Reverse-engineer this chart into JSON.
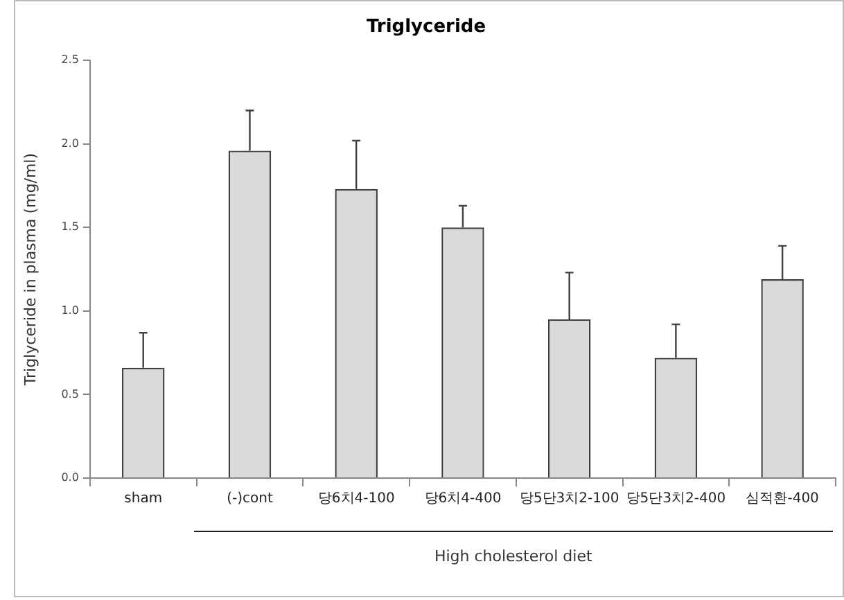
{
  "chart_data": {
    "type": "bar",
    "title": "Triglyceride",
    "ylabel": "Triglyceride in plasma (mg/ml)",
    "categories": [
      "sham",
      "(-)cont",
      "당6치4-100",
      "당6치4-400",
      "당5단3치2-100",
      "당5단3치2-400",
      "심적환-400"
    ],
    "values": [
      0.66,
      1.96,
      1.73,
      1.5,
      0.95,
      0.72,
      1.19
    ],
    "errors": [
      [
        0.66,
        0.87
      ],
      [
        1.96,
        2.2
      ],
      [
        1.73,
        2.02
      ],
      [
        1.5,
        1.63
      ],
      [
        0.95,
        1.23
      ],
      [
        0.72,
        0.92
      ],
      [
        1.19,
        1.39
      ]
    ],
    "color": "#d9d9d9",
    "ylim": [
      0,
      2.5
    ],
    "yticks": [
      {
        "value": 0,
        "label": "0.0"
      },
      {
        "value": 0.5,
        "label": "0.5"
      },
      {
        "value": 1,
        "label": "1.0"
      },
      {
        "value": 1.5,
        "label": "1.5"
      },
      {
        "value": 2,
        "label": "2.0"
      },
      {
        "value": 2.5,
        "label": "2.5"
      }
    ],
    "grid": false,
    "legend": false,
    "annotations": [
      "High cholesterol diet"
    ]
  }
}
